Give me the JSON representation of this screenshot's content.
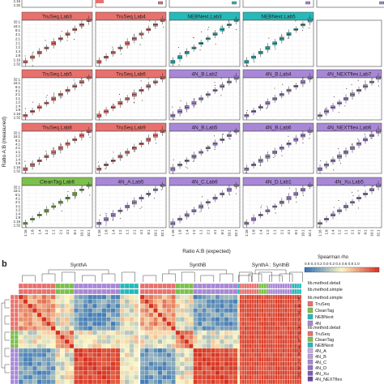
{
  "figure": {
    "panel_b_tag": "b",
    "y_axis_title": "Ratio A:B (measured)",
    "x_axis_title": "Ratio A:B (expected)",
    "y_tick_labels": [
      "32:1",
      "16:1",
      "8:1",
      "4:1",
      "2:1",
      "1:1",
      "1:2",
      "1:4",
      "1:8",
      "1:16",
      "1:32"
    ],
    "x_tick_labels": [
      "1:16",
      "1:8",
      "1:4",
      "1:2",
      "1:1",
      "2:1",
      "4:1",
      "8:1",
      "16:1",
      "32:1"
    ],
    "heatmap_groups": [
      "SynthA",
      "SynthB",
      "SynthA : SynthB"
    ],
    "legend_title": "Spearman rho",
    "legend_scale_ticks": [
      "0.2",
      "0.4",
      "0.6",
      "0.8",
      "1.0"
    ],
    "legend_scale_axis_label": "0.8 0.4 0.2 0.0 0.2 0.4 0.6 0.8 1.0",
    "legend_method_detail_title": "lib.method.detail",
    "legend_method_simple_title": "lib.method.simple",
    "legend_simple_items": [
      {
        "label": "TruSeq",
        "color": "#e8716d"
      },
      {
        "label": "CleanTag",
        "color": "#7cc04c"
      },
      {
        "label": "NEBNext",
        "color": "#26b9b9"
      },
      {
        "label": "4N",
        "color": "#a888d6"
      }
    ],
    "legend_detail_items": [
      {
        "label": "TruSeq",
        "color": "#e8716d"
      },
      {
        "label": "CleanTag",
        "color": "#7cc04c"
      },
      {
        "label": "NEBNext",
        "color": "#26b9b9"
      },
      {
        "label": "4N_A",
        "color": "#c7aee8"
      },
      {
        "label": "4N_B",
        "color": "#b79ee0"
      },
      {
        "label": "4N_C",
        "color": "#a888d6"
      },
      {
        "label": "4N_D",
        "color": "#9370c9"
      },
      {
        "label": "4N_Xu",
        "color": "#7d5ab8"
      },
      {
        "label": "4N_NEXTflex",
        "color": "#6a46a6"
      }
    ],
    "right_numbers": [
      "5",
      "4",
      "3",
      "2",
      "1",
      "0",
      "5",
      "4",
      "3",
      "2",
      "1",
      "0"
    ]
  },
  "chart_data": [
    {
      "type": "scatter",
      "description_kind": "faceted boxplots of measured vs expected ratio",
      "xlabel": "Ratio A:B (expected)",
      "ylabel": "Ratio A:B (measured)",
      "panels": [
        {
          "label": "TruSeq.Lab3",
          "method": "TruSeq"
        },
        {
          "label": "TruSeq.Lab4",
          "method": "TruSeq"
        },
        {
          "label": "NEBNext.Lab3",
          "method": "NEBNext"
        },
        {
          "label": "NEBNext.Lab5",
          "method": "NEBNext"
        },
        {
          "label": "TruSeq.Lab5",
          "method": "TruSeq"
        },
        {
          "label": "TruSeq.Lab6",
          "method": "TruSeq"
        },
        {
          "label": "4N_B.Lab2",
          "method": "4N"
        },
        {
          "label": "4N_B.Lab4",
          "method": "4N"
        },
        {
          "label": "4N_NEXTflex.Lab7",
          "method": "4N"
        },
        {
          "label": "TruSeq.Lab8",
          "method": "TruSeq"
        },
        {
          "label": "TruSeq.Lab9",
          "method": "TruSeq"
        },
        {
          "label": "4N_B.Lab5",
          "method": "4N"
        },
        {
          "label": "4N_B.Lab6",
          "method": "4N"
        },
        {
          "label": "4N_NEXTflex.Lab6",
          "method": "4N"
        },
        {
          "label": "CleanTag.Lab6",
          "method": "CleanTag"
        },
        {
          "label": "4N_A.Lab5",
          "method": "4N"
        },
        {
          "label": "4N_C.Lab6",
          "method": "4N"
        },
        {
          "label": "4N_D.Lab1",
          "method": "4N"
        },
        {
          "label": "4N_Xu.Lab5",
          "method": "4N"
        }
      ],
      "method_colors": {
        "TruSeq": "#e8716d",
        "CleanTag": "#7cc04c",
        "NEBNext": "#26b9b9",
        "4N": "#a888d6"
      },
      "expected_log2": [
        -4,
        -3,
        -2,
        -1,
        0,
        1,
        2,
        3,
        4,
        5
      ],
      "measured_log2_median": [
        -4,
        -3,
        -2,
        -1,
        0,
        1,
        2,
        3,
        4,
        5
      ]
    },
    {
      "type": "heatmap",
      "title": "Spearman rho",
      "groups": [
        "SynthA",
        "SynthB",
        "SynthA : SynthB"
      ],
      "color_low": "#2f6fb5",
      "color_mid": "#fdf6c3",
      "color_high": "#d7301f"
    }
  ]
}
